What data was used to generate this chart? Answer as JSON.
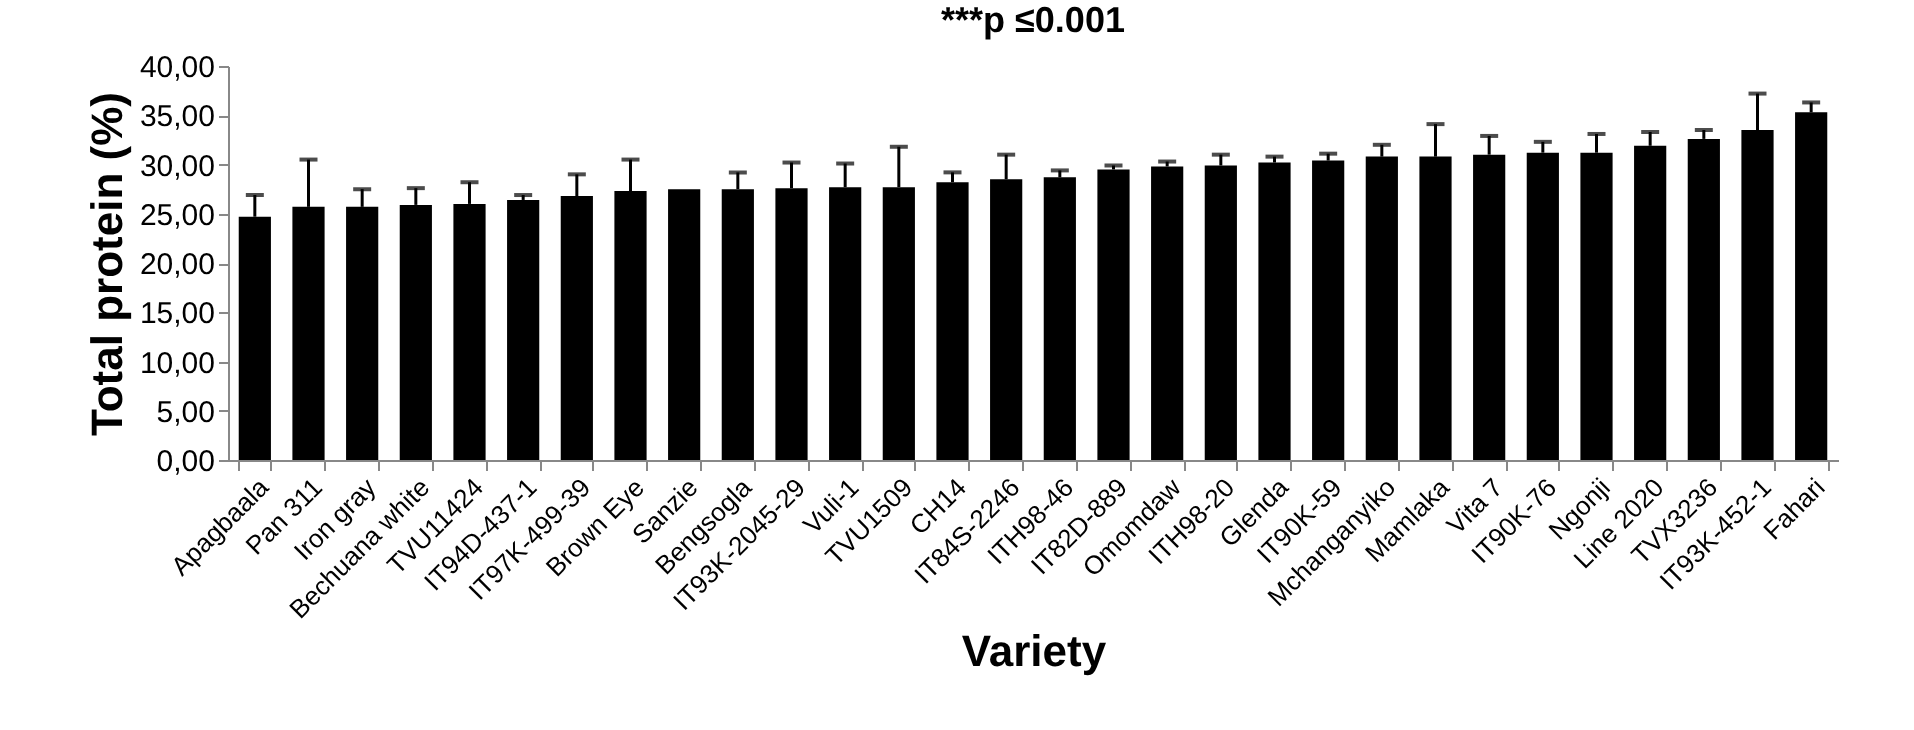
{
  "chart_data": {
    "type": "bar",
    "title": "***p ≤0.001",
    "xlabel": "Variety",
    "ylabel": "Total protein (%)",
    "categories": [
      "Apagbaala",
      "Pan 311",
      "Iron gray",
      "Bechuana white",
      "TVU11424",
      "IT94D-437-1",
      "IT97K-499-39",
      "Brown Eye",
      "Sanzie",
      "Bengsogla",
      "IT93K-2045-29",
      "Vuli-1",
      "TVU1509",
      "CH14",
      "IT84S-2246",
      "ITH98-46",
      "IT82D-889",
      "Omomdaw",
      "ITH98-20",
      "Glenda",
      "IT90K-59",
      "Mchanganyiko",
      "Mamlaka",
      "Vita 7",
      "IT90K-76",
      "Ngonji",
      "Line 2020",
      "TVX3236",
      "IT93K-452-1",
      "Fahari"
    ],
    "values": [
      24.7,
      25.7,
      25.7,
      25.9,
      26.0,
      26.4,
      26.8,
      27.3,
      27.5,
      27.5,
      27.6,
      27.7,
      27.7,
      28.2,
      28.5,
      28.7,
      29.5,
      29.8,
      29.9,
      30.2,
      30.4,
      30.8,
      30.8,
      31.0,
      31.2,
      31.2,
      31.9,
      32.6,
      33.5,
      35.3
    ],
    "errors": [
      2.2,
      4.8,
      1.8,
      1.7,
      2.2,
      0.5,
      2.2,
      3.2,
      null,
      1.7,
      2.6,
      2.4,
      4.1,
      1.0,
      2.5,
      0.7,
      0.4,
      0.5,
      1.1,
      0.6,
      0.7,
      1.2,
      3.3,
      1.9,
      1.1,
      1.9,
      1.4,
      0.9,
      3.7,
      1.0
    ],
    "color": "#000000",
    "ylim": [
      0,
      40
    ],
    "yticks": [
      {
        "value": 0,
        "label": "0,00"
      },
      {
        "value": 5,
        "label": "5,00"
      },
      {
        "value": 10,
        "label": "10,00"
      },
      {
        "value": 15,
        "label": "15,00"
      },
      {
        "value": 20,
        "label": "20,00"
      },
      {
        "value": 25,
        "label": "25,00"
      },
      {
        "value": 30,
        "label": "30,00"
      },
      {
        "value": 35,
        "label": "35,00"
      },
      {
        "value": 40,
        "label": "40,00"
      }
    ],
    "grid": false
  }
}
